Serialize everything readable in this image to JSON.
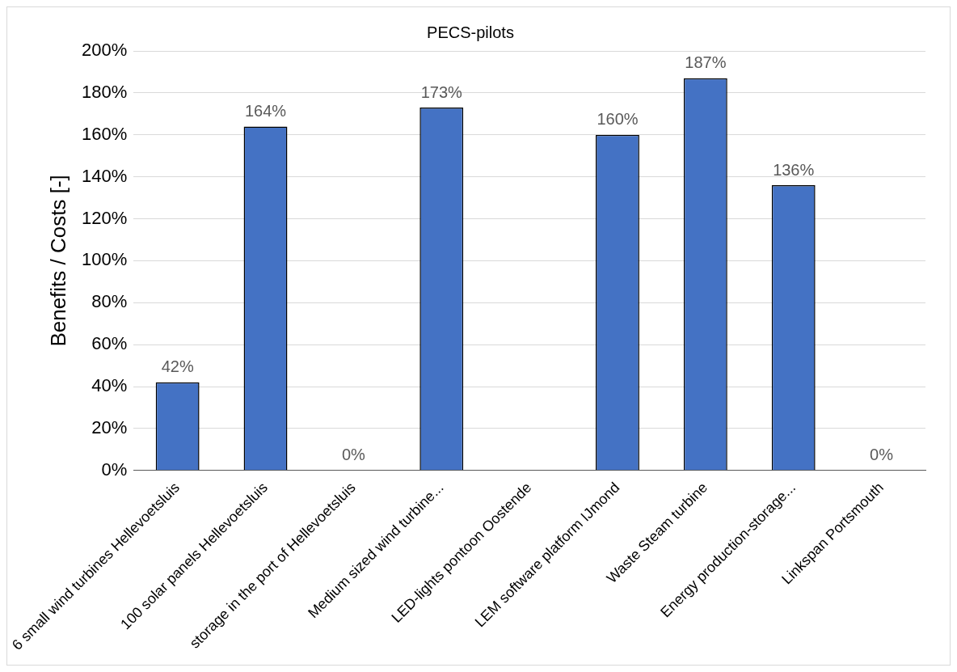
{
  "chart_data": {
    "type": "bar",
    "title": "PECS-pilots",
    "ylabel": "Benefits / Costs [-]",
    "categories": [
      "6 small wind turbines Hellevoetsluis",
      "100 solar panels Hellevoetsluis",
      "storage in the port of Hellevoetsluis",
      "Medium sized wind turbine...",
      "LED-lights pontoon Oostende",
      "LEM software platform IJmond",
      "Waste Steam turbine",
      "Energy production-storage...",
      "Linkspan Portsmouth"
    ],
    "values": [
      42,
      164,
      0,
      173,
      null,
      160,
      187,
      136,
      0
    ],
    "value_labels": [
      "42%",
      "164%",
      "0%",
      "173%",
      null,
      "160%",
      "187%",
      "136%",
      "0%"
    ],
    "color": "#4472c4",
    "ylim": [
      0,
      200
    ],
    "yticks": [
      {
        "value": 0,
        "label": "0%"
      },
      {
        "value": 20,
        "label": "20%"
      },
      {
        "value": 40,
        "label": "40%"
      },
      {
        "value": 60,
        "label": "60%"
      },
      {
        "value": 80,
        "label": "80%"
      },
      {
        "value": 100,
        "label": "100%"
      },
      {
        "value": 120,
        "label": "120%"
      },
      {
        "value": 140,
        "label": "140%"
      },
      {
        "value": 160,
        "label": "160%"
      },
      {
        "value": 180,
        "label": "180%"
      },
      {
        "value": 200,
        "label": "200%"
      }
    ],
    "grid": "y",
    "legend": false
  }
}
